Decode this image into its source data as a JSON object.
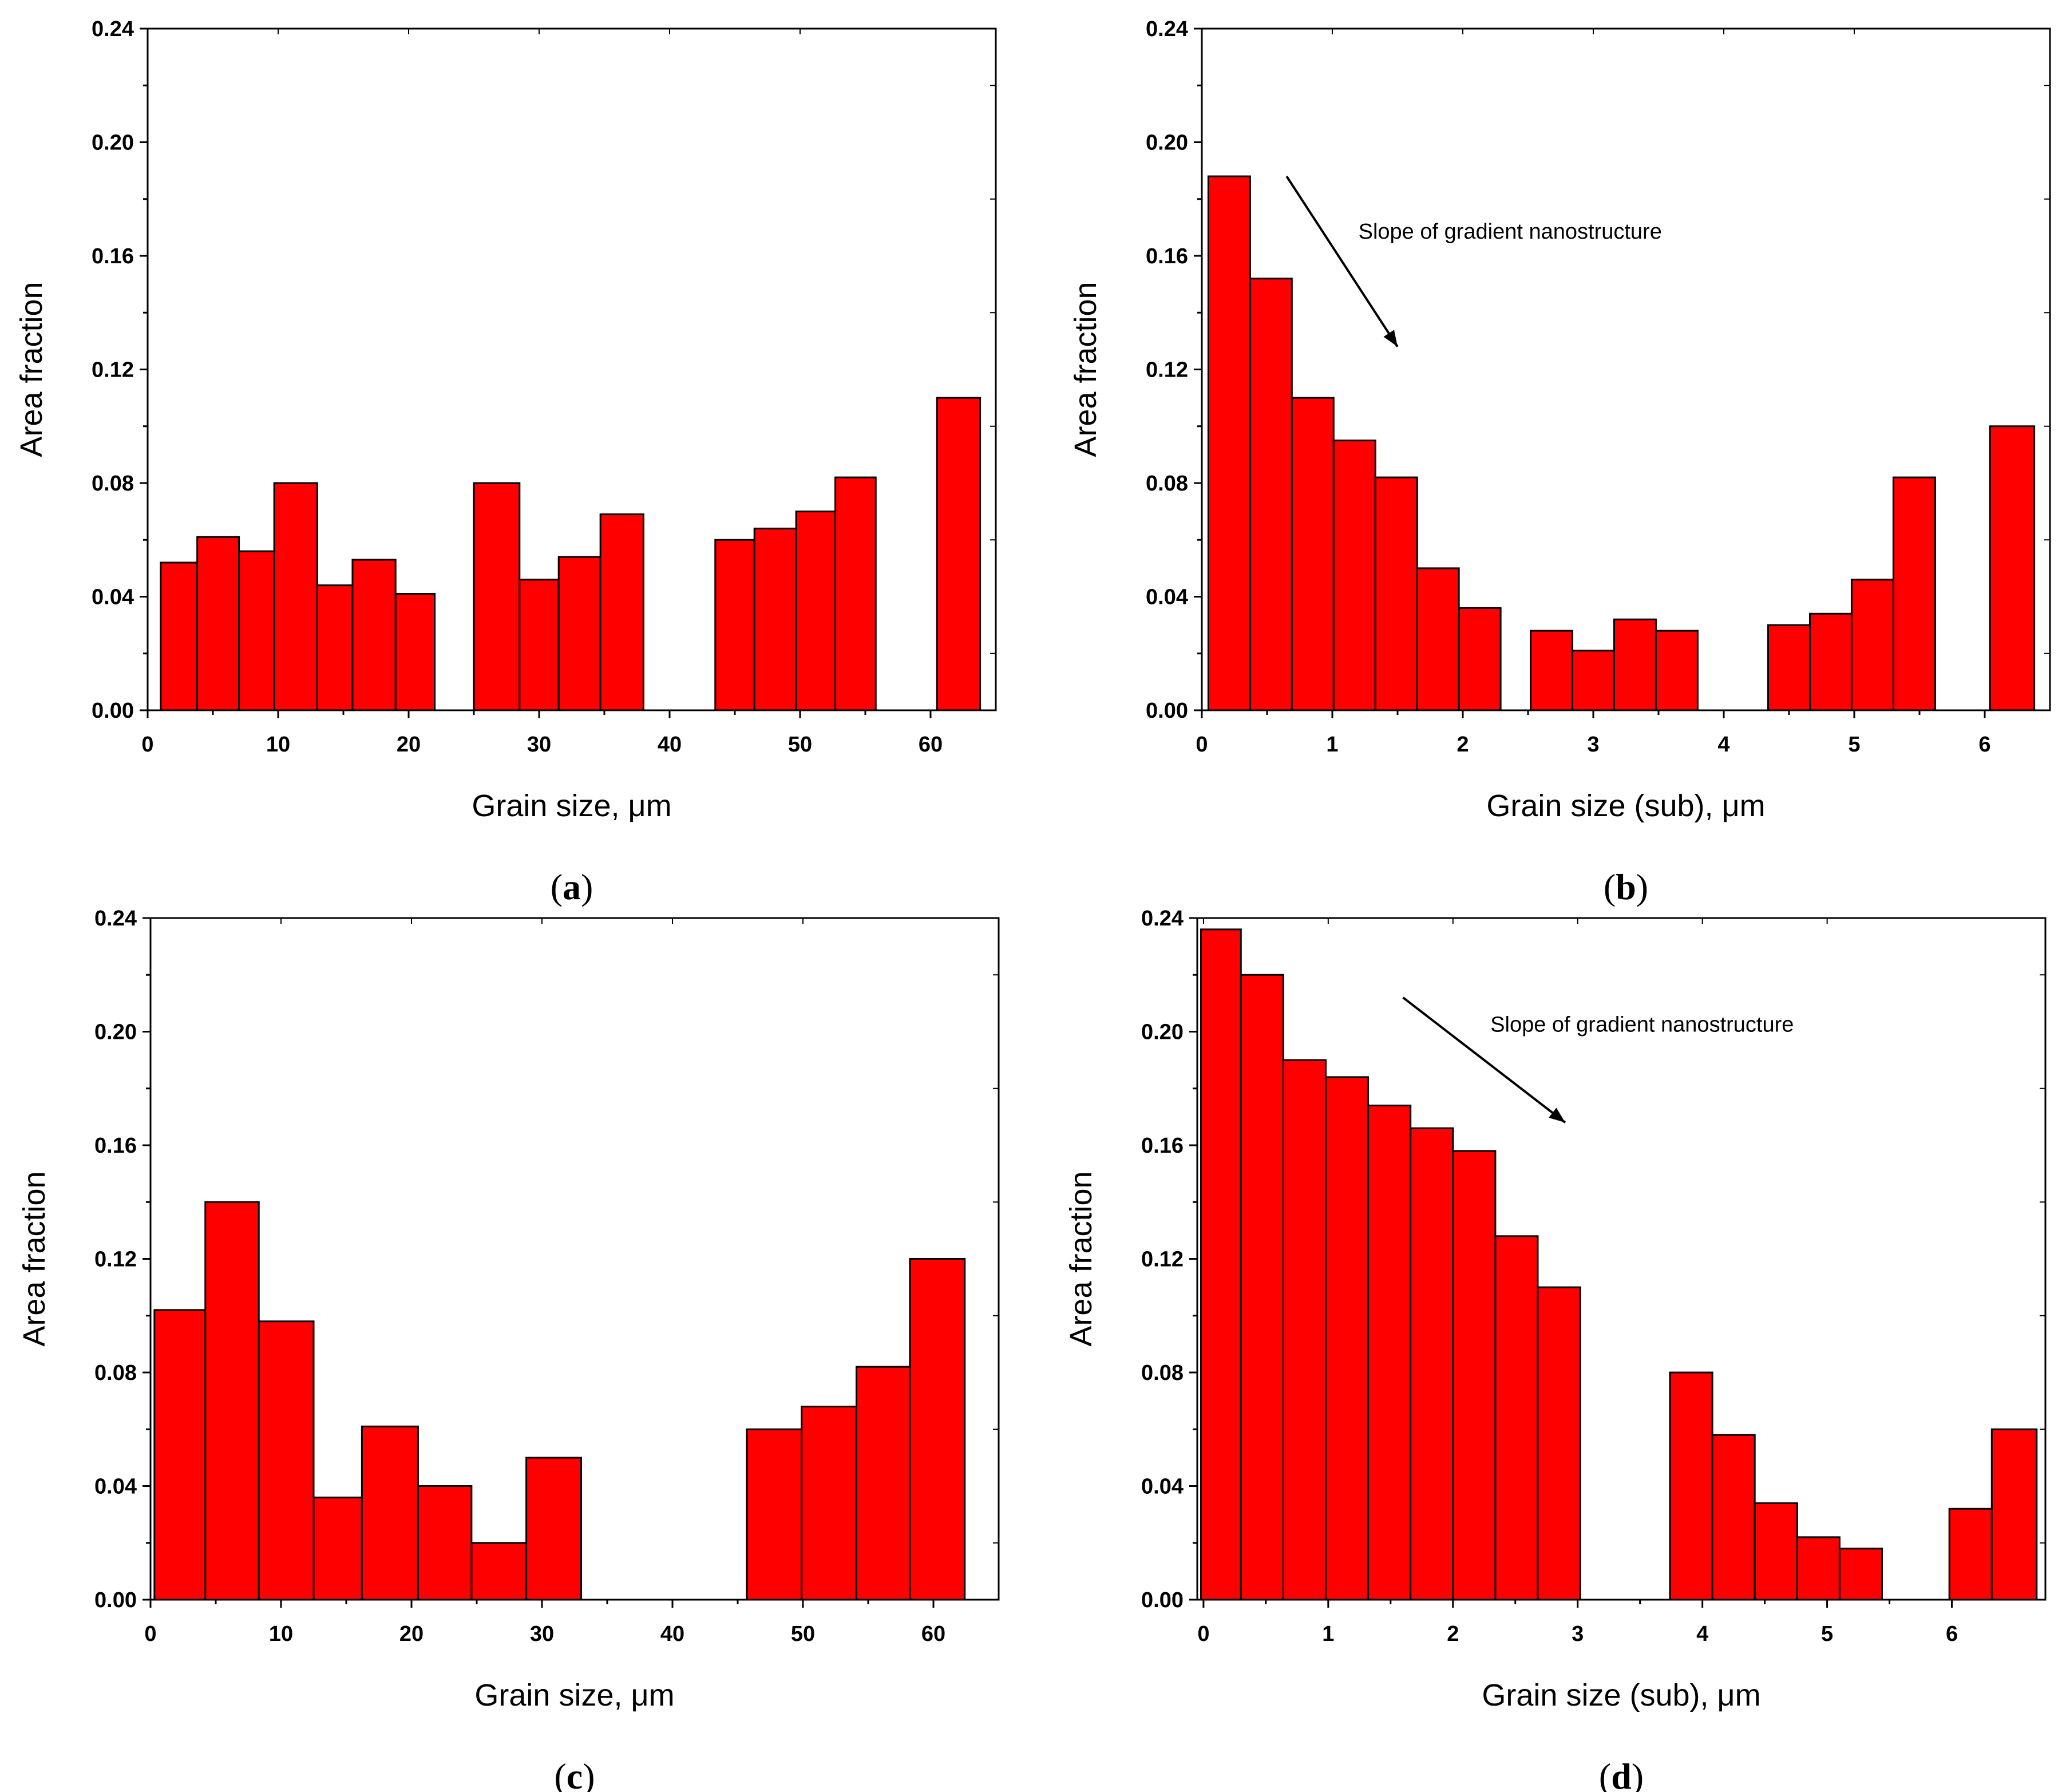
{
  "figure": {
    "panels": [
      "a",
      "b",
      "c",
      "d"
    ]
  },
  "chart_data": [
    {
      "id": "a",
      "type": "bar",
      "panel_label": "a",
      "title": "",
      "xlabel": "Grain size, μm",
      "ylabel": "Area fraction",
      "xlim": [
        0,
        65
      ],
      "ylim": [
        0,
        0.24
      ],
      "xticks": [
        0,
        10,
        20,
        30,
        40,
        50,
        60
      ],
      "yticks": [
        "0.00",
        "0.04",
        "0.08",
        "0.12",
        "0.16",
        "0.20",
        "0.24"
      ],
      "bins": [
        {
          "x0": 1.0,
          "x1": 3.8,
          "value": 0.052
        },
        {
          "x0": 3.8,
          "x1": 7.0,
          "value": 0.061
        },
        {
          "x0": 7.0,
          "x1": 9.7,
          "value": 0.056
        },
        {
          "x0": 9.7,
          "x1": 13.0,
          "value": 0.08
        },
        {
          "x0": 13.0,
          "x1": 15.7,
          "value": 0.044
        },
        {
          "x0": 15.7,
          "x1": 19.0,
          "value": 0.053
        },
        {
          "x0": 19.0,
          "x1": 22.0,
          "value": 0.041
        },
        {
          "x0": 25.0,
          "x1": 28.5,
          "value": 0.08
        },
        {
          "x0": 28.5,
          "x1": 31.5,
          "value": 0.046
        },
        {
          "x0": 31.5,
          "x1": 34.7,
          "value": 0.054
        },
        {
          "x0": 34.7,
          "x1": 38.0,
          "value": 0.069
        },
        {
          "x0": 43.5,
          "x1": 46.5,
          "value": 0.06
        },
        {
          "x0": 46.5,
          "x1": 49.7,
          "value": 0.064
        },
        {
          "x0": 49.7,
          "x1": 52.7,
          "value": 0.07
        },
        {
          "x0": 52.7,
          "x1": 55.8,
          "value": 0.082
        },
        {
          "x0": 60.5,
          "x1": 63.8,
          "value": 0.11
        }
      ]
    },
    {
      "id": "b",
      "type": "bar",
      "panel_label": "b",
      "title": "",
      "xlabel": "Grain size (sub), μm",
      "ylabel": "Area fraction",
      "xlim": [
        0,
        6.5
      ],
      "ylim": [
        0,
        0.24
      ],
      "xticks": [
        0,
        1,
        2,
        3,
        4,
        5,
        6
      ],
      "yticks": [
        "0.00",
        "0.04",
        "0.08",
        "0.12",
        "0.16",
        "0.20",
        "0.24"
      ],
      "annotation": {
        "text": "Slope of gradient nanostructure",
        "arrow_from": [
          0.65,
          0.188
        ],
        "arrow_to": [
          1.5,
          0.128
        ],
        "text_at": [
          1.2,
          0.166
        ]
      },
      "bins": [
        {
          "x0": 0.05,
          "x1": 0.37,
          "value": 0.188
        },
        {
          "x0": 0.37,
          "x1": 0.69,
          "value": 0.152
        },
        {
          "x0": 0.69,
          "x1": 1.01,
          "value": 0.11
        },
        {
          "x0": 1.01,
          "x1": 1.33,
          "value": 0.095
        },
        {
          "x0": 1.33,
          "x1": 1.65,
          "value": 0.082
        },
        {
          "x0": 1.65,
          "x1": 1.97,
          "value": 0.05
        },
        {
          "x0": 1.97,
          "x1": 2.29,
          "value": 0.036
        },
        {
          "x0": 2.52,
          "x1": 2.84,
          "value": 0.028
        },
        {
          "x0": 2.84,
          "x1": 3.16,
          "value": 0.021
        },
        {
          "x0": 3.16,
          "x1": 3.48,
          "value": 0.032
        },
        {
          "x0": 3.48,
          "x1": 3.8,
          "value": 0.028
        },
        {
          "x0": 4.34,
          "x1": 4.66,
          "value": 0.03
        },
        {
          "x0": 4.66,
          "x1": 4.98,
          "value": 0.034
        },
        {
          "x0": 4.98,
          "x1": 5.3,
          "value": 0.046
        },
        {
          "x0": 5.3,
          "x1": 5.62,
          "value": 0.082
        },
        {
          "x0": 6.04,
          "x1": 6.38,
          "value": 0.1
        }
      ]
    },
    {
      "id": "c",
      "type": "bar",
      "panel_label": "c",
      "title": "",
      "xlabel": "Grain size, μm",
      "ylabel": "Area fraction",
      "xlim": [
        0,
        65
      ],
      "ylim": [
        0,
        0.24
      ],
      "xticks": [
        0,
        10,
        20,
        30,
        40,
        50,
        60
      ],
      "yticks": [
        "0.00",
        "0.04",
        "0.08",
        "0.12",
        "0.16",
        "0.20",
        "0.24"
      ],
      "bins": [
        {
          "x0": 0.3,
          "x1": 4.2,
          "value": 0.102
        },
        {
          "x0": 4.2,
          "x1": 8.3,
          "value": 0.14
        },
        {
          "x0": 8.3,
          "x1": 12.5,
          "value": 0.098
        },
        {
          "x0": 12.5,
          "x1": 16.2,
          "value": 0.036
        },
        {
          "x0": 16.2,
          "x1": 20.5,
          "value": 0.061
        },
        {
          "x0": 20.5,
          "x1": 24.6,
          "value": 0.04
        },
        {
          "x0": 24.6,
          "x1": 28.8,
          "value": 0.02
        },
        {
          "x0": 28.8,
          "x1": 33.0,
          "value": 0.05
        },
        {
          "x0": 45.7,
          "x1": 49.9,
          "value": 0.06
        },
        {
          "x0": 49.9,
          "x1": 54.1,
          "value": 0.068
        },
        {
          "x0": 54.1,
          "x1": 58.2,
          "value": 0.082
        },
        {
          "x0": 58.2,
          "x1": 62.4,
          "value": 0.12
        }
      ]
    },
    {
      "id": "d",
      "type": "bar",
      "panel_label": "d",
      "title": "",
      "xlabel": "Grain size (sub), μm",
      "ylabel": "Area fraction",
      "xlim": [
        -0.05,
        6.75
      ],
      "ylim": [
        0,
        0.24
      ],
      "xticks": [
        0,
        1,
        2,
        3,
        4,
        5,
        6
      ],
      "yticks": [
        "0.00",
        "0.04",
        "0.08",
        "0.12",
        "0.16",
        "0.20",
        "0.24"
      ],
      "annotation": {
        "text": "Slope of gradient nanostructure",
        "arrow_from": [
          1.6,
          0.212
        ],
        "arrow_to": [
          2.9,
          0.168
        ],
        "text_at": [
          2.3,
          0.2
        ]
      },
      "bins": [
        {
          "x0": -0.02,
          "x1": 0.3,
          "value": 0.236
        },
        {
          "x0": 0.3,
          "x1": 0.64,
          "value": 0.22
        },
        {
          "x0": 0.64,
          "x1": 0.98,
          "value": 0.19
        },
        {
          "x0": 0.98,
          "x1": 1.32,
          "value": 0.184
        },
        {
          "x0": 1.32,
          "x1": 1.66,
          "value": 0.174
        },
        {
          "x0": 1.66,
          "x1": 2.0,
          "value": 0.166
        },
        {
          "x0": 2.0,
          "x1": 2.34,
          "value": 0.158
        },
        {
          "x0": 2.34,
          "x1": 2.68,
          "value": 0.128
        },
        {
          "x0": 2.68,
          "x1": 3.02,
          "value": 0.11
        },
        {
          "x0": 3.74,
          "x1": 4.08,
          "value": 0.08
        },
        {
          "x0": 4.08,
          "x1": 4.42,
          "value": 0.058
        },
        {
          "x0": 4.42,
          "x1": 4.76,
          "value": 0.034
        },
        {
          "x0": 4.76,
          "x1": 5.1,
          "value": 0.022
        },
        {
          "x0": 5.1,
          "x1": 5.44,
          "value": 0.018
        },
        {
          "x0": 5.98,
          "x1": 6.32,
          "value": 0.032
        },
        {
          "x0": 6.32,
          "x1": 6.68,
          "value": 0.06
        }
      ]
    }
  ],
  "colors": {
    "bar_fill": "#ff0000",
    "bar_stroke": "#000000",
    "axis": "#000000"
  }
}
